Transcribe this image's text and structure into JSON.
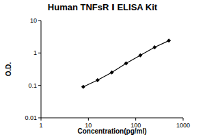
{
  "chart_data": {
    "type": "line",
    "title": "Human TNFsR Ⅰ ELISA Kit",
    "x_label": "Concentration(pg/ml)",
    "y_label": "O.D.",
    "x": [
      7.8,
      15.6,
      31.25,
      62.5,
      125,
      250,
      500
    ],
    "values": [
      0.09,
      0.145,
      0.25,
      0.48,
      0.85,
      1.5,
      2.4
    ],
    "color": "#000000",
    "marker": "diamond",
    "line_style": "solid",
    "log": true,
    "grid": false,
    "xlim": [
      1,
      1000
    ],
    "xticks": [
      1,
      10,
      100,
      1000
    ],
    "ylim": [
      0.01,
      10
    ],
    "yticks": [
      0.01,
      0.1,
      1,
      10
    ]
  }
}
